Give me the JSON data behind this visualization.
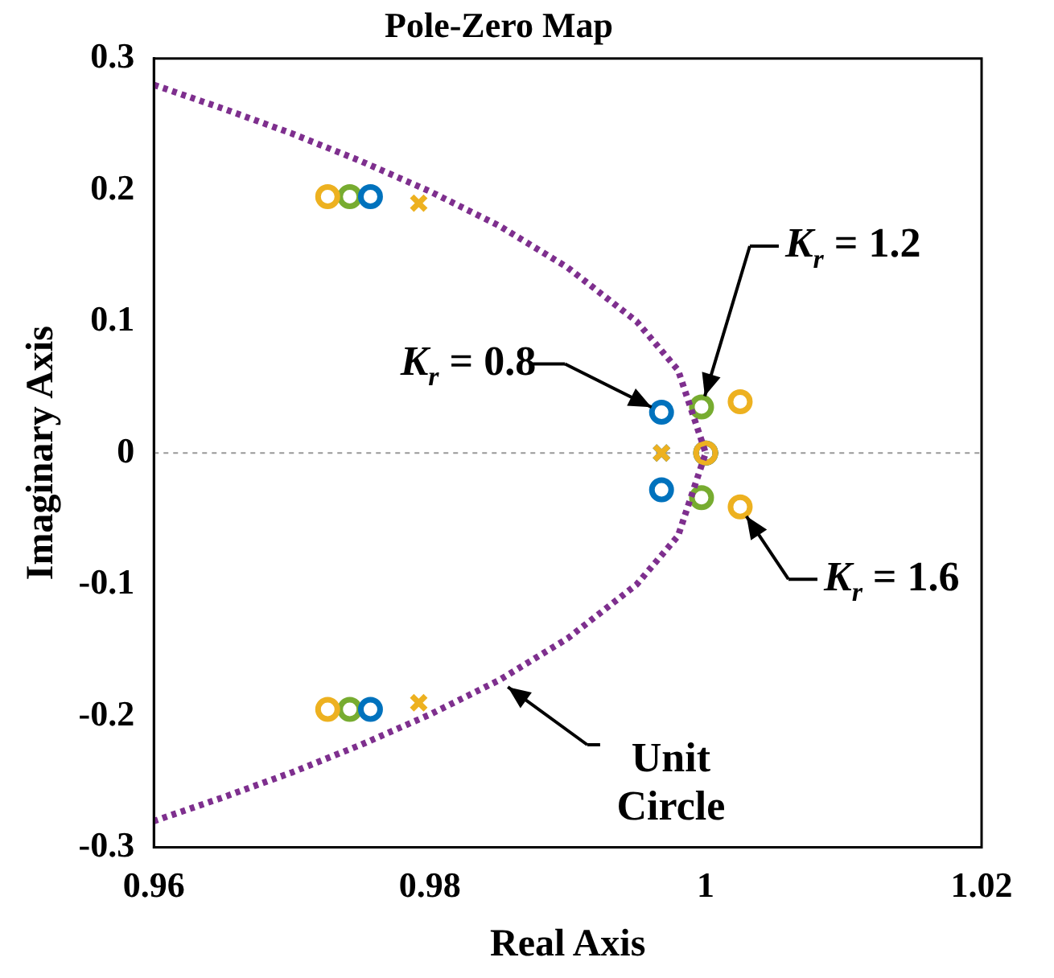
{
  "chart_data": {
    "type": "scatter",
    "title": "Pole-Zero Map",
    "xlabel": "Real Axis",
    "ylabel": "Imaginary Axis",
    "xlim": [
      0.96,
      1.02
    ],
    "xticks": [
      0.96,
      0.98,
      1,
      1.02
    ],
    "ylim": [
      -0.3,
      0.3
    ],
    "yticks": [
      -0.3,
      -0.2,
      -0.1,
      0,
      0.1,
      0.2,
      0.3
    ],
    "grid": false,
    "legend": false,
    "series": [
      {
        "type": "line",
        "color": "#7e2f8e",
        "line_style": "dotted",
        "marker": "none",
        "x": [
          0.96,
          0.965,
          0.97,
          0.975,
          0.98,
          0.985,
          0.99,
          0.995,
          0.998,
          1,
          0.998,
          0.995,
          0.99,
          0.985,
          0.98,
          0.975,
          0.97,
          0.965,
          0.96
        ],
        "values": [
          0.28,
          0.262,
          0.243,
          0.222,
          0.199,
          0.173,
          0.141,
          0.1,
          0.063,
          0,
          -0.063,
          -0.1,
          -0.141,
          -0.173,
          -0.199,
          -0.222,
          -0.243,
          -0.262,
          -0.28
        ]
      },
      {
        "type": "scatter",
        "color": "#edb120",
        "marker": "cross",
        "x": [
          0.9792,
          0.9968,
          0.9792
        ],
        "values": [
          0.19,
          0,
          -0.19
        ]
      },
      {
        "type": "scatter",
        "color": "#0072bd",
        "marker": "cross",
        "x": [
          0.9968
        ],
        "values": [
          0
        ]
      },
      {
        "type": "scatter",
        "color": "#edb120",
        "marker": "circle",
        "x": [
          0.9726,
          1.0025,
          1,
          1.0025,
          0.9726
        ],
        "values": [
          0.195,
          0.039,
          0,
          -0.041,
          -0.195
        ]
      },
      {
        "type": "scatter",
        "color": "#0072bd",
        "marker": "circle",
        "x": [
          0.9757,
          0.9968,
          1,
          0.9968,
          0.9757
        ],
        "values": [
          0.195,
          0.031,
          0,
          -0.028,
          -0.195
        ]
      },
      {
        "type": "scatter",
        "color": "#77ac30",
        "marker": "circle",
        "x": [
          0.9742,
          0.9997,
          1,
          0.9997,
          0.9742
        ],
        "values": [
          0.195,
          0.035,
          0,
          -0.034,
          -0.195
        ]
      }
    ],
    "ref_lines": [
      {
        "axis": "y",
        "value": 0,
        "color": "#999999",
        "line_style": "dotted"
      }
    ],
    "annotations": [
      {
        "text": "K$_{r}$ = 0.8",
        "x": 0.9968,
        "y": 0.031
      },
      {
        "text": "K$_{r}$ = 1.2",
        "x": 0.9997,
        "y": 0.035
      },
      {
        "text": "K$_{r}$ = 1.6",
        "x": 1.0025,
        "y": -0.041
      },
      {
        "text": "Unit Circle",
        "x": 0.985,
        "y": -0.173
      }
    ]
  }
}
